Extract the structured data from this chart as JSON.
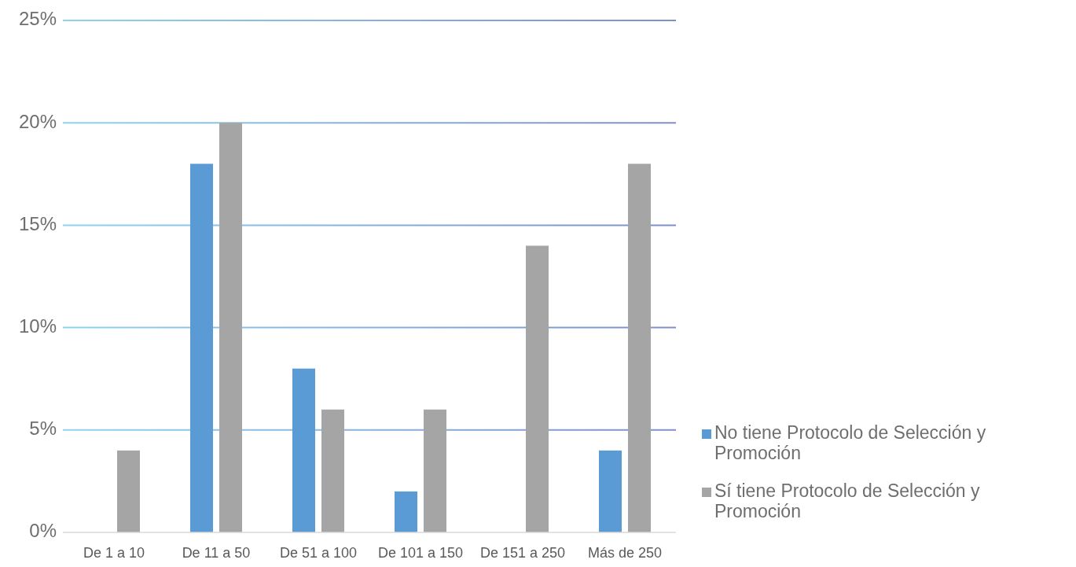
{
  "chart_data": {
    "type": "bar",
    "categories": [
      "De 1 a 10",
      "De 11 a 50",
      "De 51 a 100",
      "De 101 a 150",
      "De 151 a 250",
      "Más de 250"
    ],
    "series": [
      {
        "name": "No tiene Protocolo de Selección y Promoción",
        "color": "#5b9bd5",
        "values": [
          0,
          18,
          8,
          2,
          0,
          4
        ]
      },
      {
        "name": "Sí tiene Protocolo de Selección y Promoción",
        "color": "#a5a5a5",
        "values": [
          4,
          20,
          6,
          6,
          14,
          18
        ]
      }
    ],
    "ylim": [
      0,
      25
    ],
    "yticks": [
      {
        "value": 0,
        "label": "0%"
      },
      {
        "value": 5,
        "label": "5%"
      },
      {
        "value": 10,
        "label": "10%"
      },
      {
        "value": 15,
        "label": "15%"
      },
      {
        "value": 20,
        "label": "20%"
      },
      {
        "value": 25,
        "label": "25%"
      }
    ],
    "grid": "y",
    "legend": "right"
  }
}
